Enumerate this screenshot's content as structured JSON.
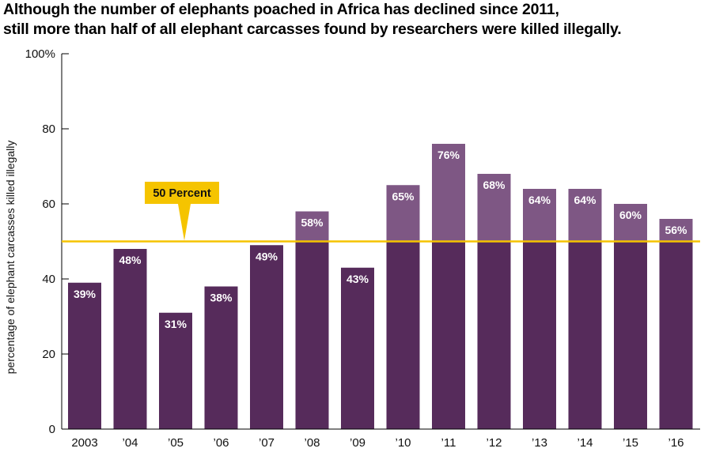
{
  "chart_data": {
    "type": "bar",
    "title_lines": [
      "Although the number of elephants poached in Africa has declined since 2011,",
      "still more than half of all elephant carcasses found by researchers were killed illegally."
    ],
    "ylabel": "percentage of elephant carcasses killed illegally",
    "xlabel": "",
    "ylim": [
      0,
      100
    ],
    "yticks": [
      {
        "value": 0,
        "label": "0"
      },
      {
        "value": 20,
        "label": "20"
      },
      {
        "value": 40,
        "label": "40"
      },
      {
        "value": 60,
        "label": "60"
      },
      {
        "value": 80,
        "label": "80"
      },
      {
        "value": 100,
        "label": "100%"
      }
    ],
    "categories": [
      "2003",
      "’04",
      "’05",
      "’06",
      "’07",
      "’08",
      "’09",
      "’10",
      "’11",
      "’12",
      "’13",
      "’14",
      "’15",
      "’16"
    ],
    "values": [
      39,
      48,
      31,
      38,
      49,
      58,
      43,
      65,
      76,
      68,
      64,
      64,
      60,
      56
    ],
    "data_labels": [
      "39%",
      "48%",
      "31%",
      "38%",
      "49%",
      "58%",
      "43%",
      "65%",
      "76%",
      "68%",
      "64%",
      "64%",
      "60%",
      "56%"
    ],
    "reference_line": {
      "value": 50,
      "label": "50 Percent"
    },
    "colors": {
      "bar": "#562b5b",
      "bar_above_reference": "#7e5784",
      "reference_line": "#f5c400",
      "callout": "#f5c400",
      "axis": "#000000"
    }
  }
}
